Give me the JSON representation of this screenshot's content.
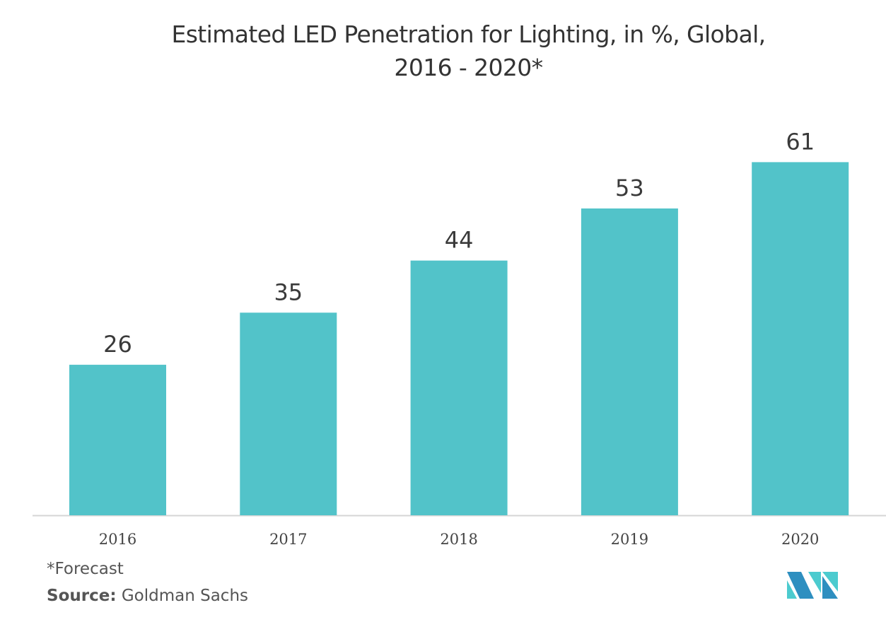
{
  "chart_data": {
    "type": "bar",
    "title": "Estimated LED Penetration for Lighting, in %, Global, 2016 - 2020*",
    "title_lines": [
      "Estimated LED Penetration for Lighting, in %, Global,",
      "2016 - 2020*"
    ],
    "categories": [
      "2016",
      "2017",
      "2018",
      "2019",
      "2020"
    ],
    "values": [
      26,
      35,
      44,
      53,
      61
    ],
    "data_labels": [
      "26",
      "35",
      "44",
      "53",
      "61"
    ],
    "xlabel": "",
    "ylabel": "",
    "ylim": [
      0,
      70
    ],
    "grid": false,
    "legend": "none",
    "bar_color": "#52c3c9",
    "unit": "%"
  },
  "footnote": "*Forecast",
  "source": {
    "label": "Source:",
    "text": " Goldman Sachs"
  },
  "logo": {
    "name": "mordor-intelligence-logo",
    "colors": [
      "#2e8fc0",
      "#4ccbcf"
    ]
  }
}
